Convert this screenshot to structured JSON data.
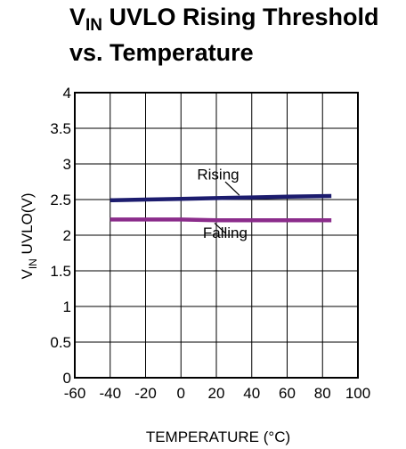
{
  "title": {
    "line1_prefix": "V",
    "line1_sub": "IN",
    "line1_rest": " UVLO Rising Threshold",
    "line2": "vs. Temperature"
  },
  "chart_data": {
    "type": "line",
    "xlabel": "TEMPERATURE (°C)",
    "ylabel_main": "V",
    "ylabel_sub": "IN",
    "ylabel_rest": " UVLO(V)",
    "xlim": [
      -60,
      100
    ],
    "ylim": [
      0,
      4
    ],
    "xticks": [
      "-60",
      "-40",
      "-20",
      "0",
      "20",
      "40",
      "60",
      "80",
      "100"
    ],
    "yticks": [
      "0",
      "0.5",
      "1",
      "1.5",
      "2",
      "2.5",
      "3",
      "3.5",
      "4"
    ],
    "grid": true,
    "series": [
      {
        "name": "Rising",
        "color": "#1c1c6e",
        "x": [
          -40,
          -20,
          0,
          20,
          40,
          60,
          85
        ],
        "y": [
          2.49,
          2.5,
          2.51,
          2.52,
          2.53,
          2.54,
          2.55
        ]
      },
      {
        "name": "Falling",
        "color": "#8b2c8b",
        "x": [
          -40,
          -20,
          0,
          20,
          40,
          60,
          85
        ],
        "y": [
          2.22,
          2.22,
          2.22,
          2.21,
          2.21,
          2.21,
          2.21
        ]
      }
    ]
  }
}
